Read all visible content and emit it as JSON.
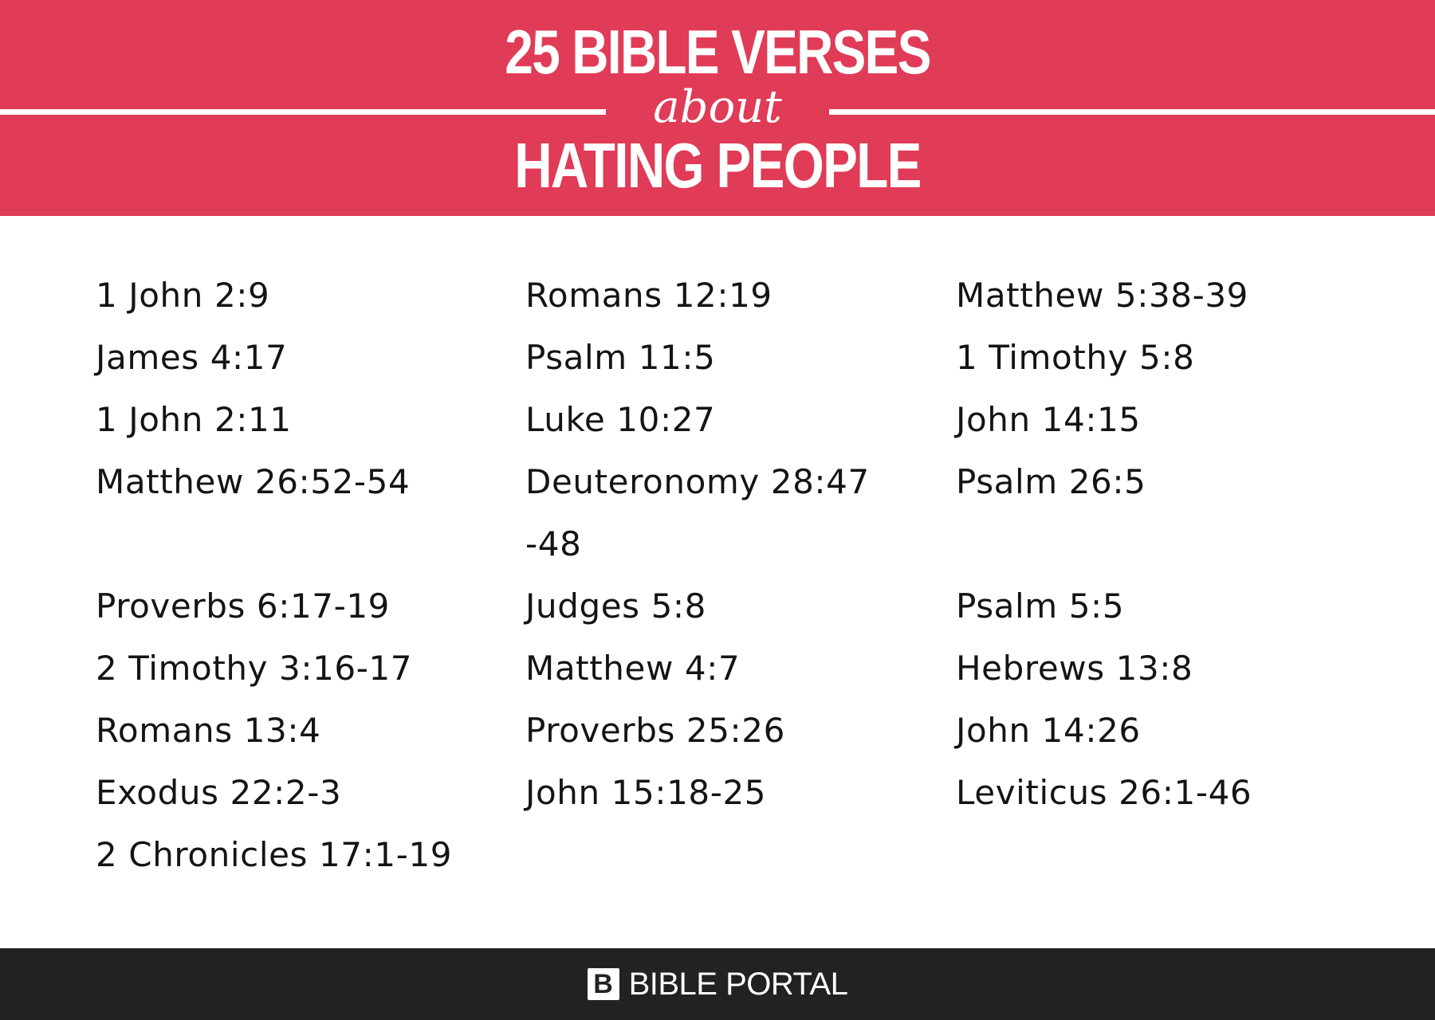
{
  "header": {
    "title_line1": "25 BIBLE VERSES",
    "title_about": "about",
    "title_line2": "HATING PEOPLE",
    "background_color": "#e03b57"
  },
  "columns": [
    {
      "items": [
        "1 John 2:9",
        "James 4:17",
        "1 John 2:11",
        "Matthew 26:52-54",
        "Proverbs 6:17-19",
        "2 Timothy 3:16-17",
        "Romans 13:4",
        "Exodus 22:2-3",
        "2 Chronicles 17:1-19"
      ]
    },
    {
      "items": [
        "Romans 12:19",
        "Psalm 11:5",
        "Luke 10:27",
        "Deuteronomy 28:47-48",
        "Judges 5:8",
        "Matthew 4:7",
        "Proverbs 25:26",
        "John 15:18-25"
      ]
    },
    {
      "items": [
        "Matthew 5:38-39",
        "1 Timothy 5:8",
        "John 14:15",
        "Psalm 26:5",
        "Psalm 5:5",
        "Hebrews 13:8",
        "John 14:26",
        "Leviticus 26:1-46"
      ]
    }
  ],
  "footer": {
    "brand_icon": "B",
    "brand_name": "BIBLE PORTAL",
    "background_color": "#222222"
  }
}
